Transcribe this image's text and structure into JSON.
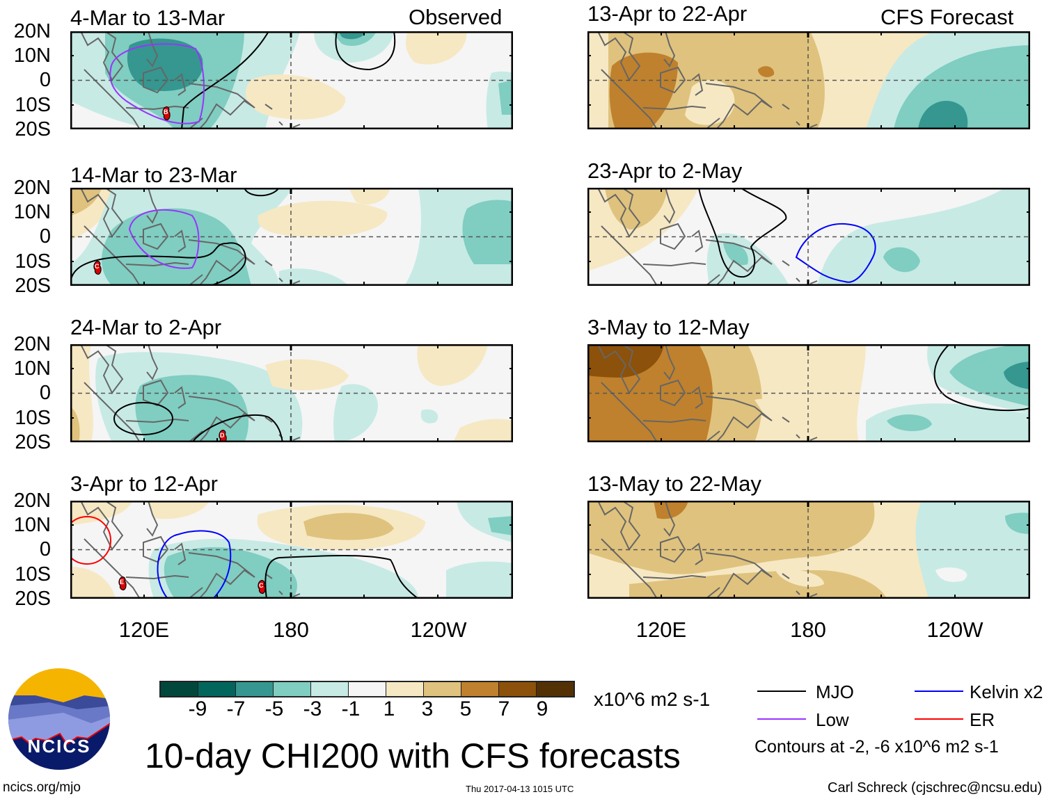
{
  "header": {
    "left_label": "Observed",
    "right_label": "CFS Forecast"
  },
  "panels": {
    "left": [
      {
        "title": "4-Mar to 13-Mar",
        "cyclones": [
          "B"
        ]
      },
      {
        "title": "14-Mar to 23-Mar",
        "cyclones": [
          "C"
        ]
      },
      {
        "title": "24-Mar to 2-Apr",
        "cyclones": [
          "D"
        ]
      },
      {
        "title": "3-Apr to 12-Apr",
        "cyclones": [
          "E",
          "C"
        ]
      }
    ],
    "right": [
      {
        "title": "13-Apr to 22-Apr"
      },
      {
        "title": "23-Apr to 2-May"
      },
      {
        "title": "3-May to 12-May"
      },
      {
        "title": "13-May to 22-May"
      }
    ]
  },
  "lat_labels": [
    "20N",
    "10N",
    "0",
    "10S",
    "20S"
  ],
  "lon_labels": [
    "120E",
    "180",
    "120W"
  ],
  "colorbar": {
    "ticks": [
      "-9",
      "-7",
      "-5",
      "-3",
      "-1",
      "1",
      "3",
      "5",
      "7",
      "9"
    ],
    "colors": [
      "#01473c",
      "#02665c",
      "#35978f",
      "#80cdc1",
      "#c7eae5",
      "#f5f5f5",
      "#f6e8c3",
      "#dfc27d",
      "#bf812d",
      "#8c510a",
      "#543005"
    ],
    "units": "x10^6 m2 s-1"
  },
  "title": "10-day CHI200 with CFS forecasts",
  "legend": {
    "items": [
      {
        "label": "MJO",
        "color": "#000000"
      },
      {
        "label": "Kelvin x2",
        "color": "#0000ff"
      },
      {
        "label": "Low",
        "color": "#9933ff"
      },
      {
        "label": "ER",
        "color": "#ff0000"
      }
    ],
    "note": "Contours at -2, -6 x10^6 m2 s-1"
  },
  "logo": {
    "text": "NCICS"
  },
  "footer": {
    "url": "ncics.org/mjo",
    "timestamp": "Thu 2017-04-13 1015 UTC",
    "credit": "Carl Schreck (cjschrec@ncsu.edu)"
  }
}
